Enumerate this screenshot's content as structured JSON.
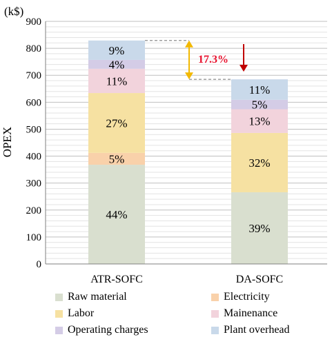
{
  "chart_data": {
    "type": "bar",
    "stacked": true,
    "unit": "(k$)",
    "ylabel": "OPEX",
    "ylim": [
      0,
      900
    ],
    "yticks": [
      0,
      100,
      200,
      300,
      400,
      500,
      600,
      700,
      800,
      900
    ],
    "grid": true,
    "categories": [
      "ATR-SOFC",
      "DA-SOFC"
    ],
    "series": [
      {
        "name": "Raw material",
        "color": "#d9dfcf",
        "values": [
          368,
          266
        ],
        "labels": [
          "44%",
          "39%"
        ]
      },
      {
        "name": "Electricity",
        "color": "#f9d1aa",
        "values": [
          44,
          0
        ],
        "labels": [
          "5%",
          ""
        ]
      },
      {
        "name": "Labor",
        "color": "#f6e1a2",
        "values": [
          222,
          220
        ],
        "labels": [
          "27%",
          "32%"
        ]
      },
      {
        "name": "Mainenance",
        "color": "#f2d3dc",
        "values": [
          90,
          88
        ],
        "labels": [
          "11%",
          "13%"
        ]
      },
      {
        "name": "Operating charges",
        "color": "#d4cce6",
        "values": [
          33,
          35
        ],
        "labels": [
          "4%",
          "5%"
        ]
      },
      {
        "name": "Plant overhead",
        "color": "#c9d9ea",
        "values": [
          72,
          76
        ],
        "labels": [
          "9%",
          "11%"
        ]
      }
    ],
    "annotation": {
      "text": "17.3%",
      "color": "#e8112d",
      "arrow_color": "#f2b800"
    },
    "legend": "bottom"
  }
}
